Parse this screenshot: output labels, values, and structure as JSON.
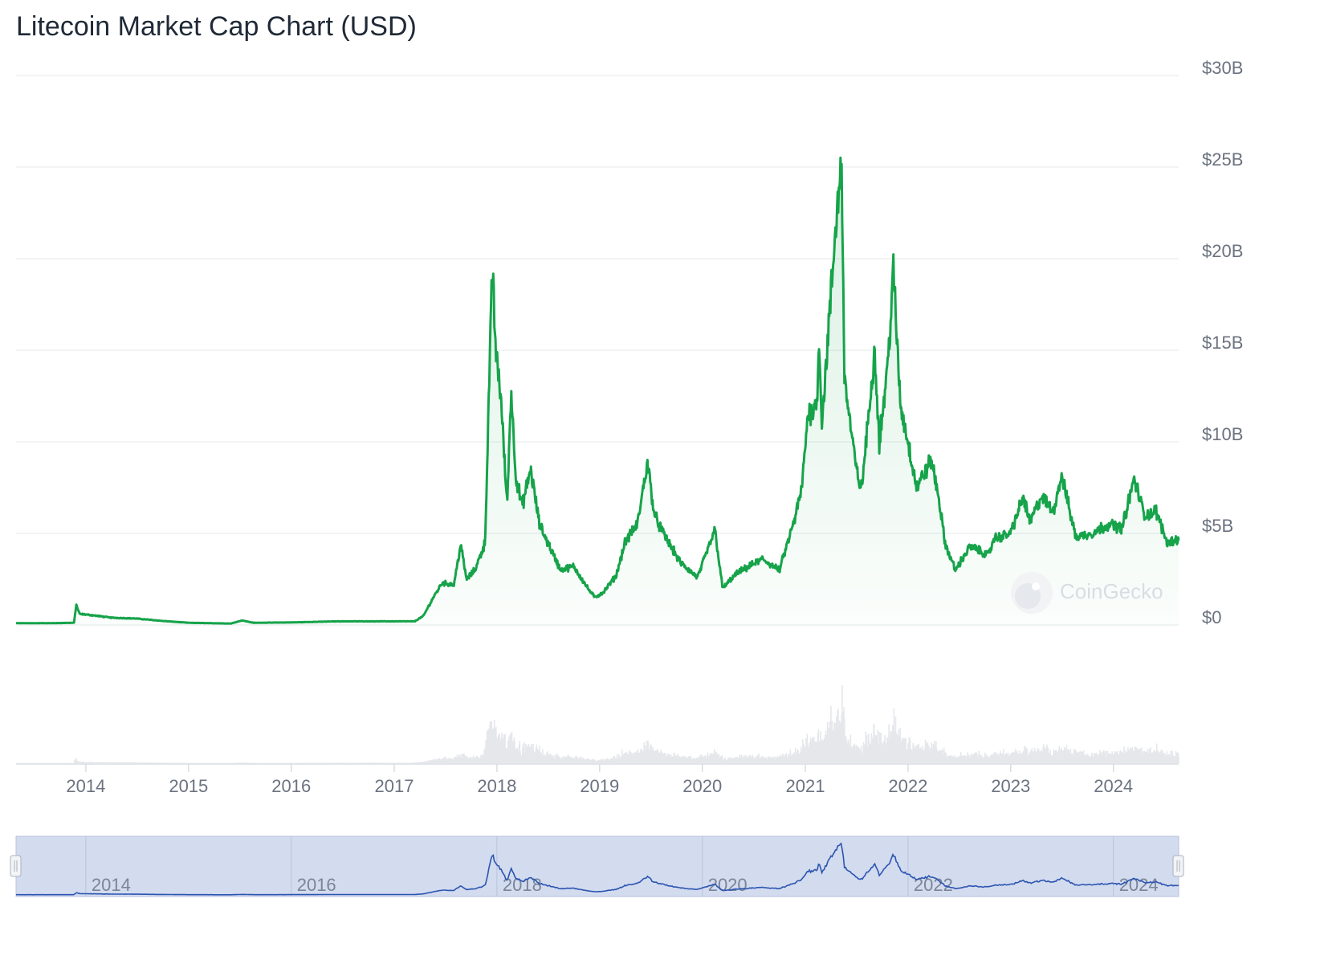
{
  "chart_data": {
    "type": "area",
    "title": "Litecoin Market Cap Chart (USD)",
    "xlabel": "",
    "ylabel": "",
    "x_axis": {
      "type": "date",
      "range": [
        "2013-04-28",
        "2024-08-20"
      ],
      "ticks": [
        "2014",
        "2015",
        "2016",
        "2017",
        "2018",
        "2019",
        "2020",
        "2021",
        "2022",
        "2023",
        "2024"
      ]
    },
    "y_axis": {
      "unit": "USD billions",
      "range": [
        0,
        30
      ],
      "ticks": [
        "$0",
        "$5B",
        "$10B",
        "$15B",
        "$20B",
        "$25B",
        "$30B"
      ]
    },
    "grid": true,
    "legend": "none",
    "watermark": "CoinGecko",
    "colors": {
      "line": "#16a34a",
      "fill": "#dcfce7",
      "grid": "#e9ecef",
      "volume": "#e5e7eb",
      "navigator_bg": "#d3dbef",
      "navigator_line": "#2b55b0"
    },
    "series": [
      {
        "name": "Market Cap",
        "points": [
          [
            "2013-04-28",
            0.1
          ],
          [
            "2013-09-01",
            0.1
          ],
          [
            "2013-11-20",
            0.12
          ],
          [
            "2013-11-28",
            1.1
          ],
          [
            "2013-12-10",
            0.6
          ],
          [
            "2014-01-15",
            0.55
          ],
          [
            "2014-04-01",
            0.4
          ],
          [
            "2014-07-01",
            0.35
          ],
          [
            "2014-10-01",
            0.22
          ],
          [
            "2015-01-01",
            0.12
          ],
          [
            "2015-06-01",
            0.08
          ],
          [
            "2015-07-10",
            0.25
          ],
          [
            "2015-08-20",
            0.12
          ],
          [
            "2016-01-01",
            0.14
          ],
          [
            "2016-06-15",
            0.2
          ],
          [
            "2016-12-31",
            0.2
          ],
          [
            "2017-03-15",
            0.2
          ],
          [
            "2017-04-15",
            0.5
          ],
          [
            "2017-05-20",
            1.5
          ],
          [
            "2017-06-20",
            2.3
          ],
          [
            "2017-08-01",
            2.2
          ],
          [
            "2017-08-25",
            4.4
          ],
          [
            "2017-09-15",
            2.5
          ],
          [
            "2017-10-15",
            3.0
          ],
          [
            "2017-11-20",
            4.5
          ],
          [
            "2017-12-12",
            17.5
          ],
          [
            "2017-12-19",
            19.5
          ],
          [
            "2017-12-26",
            15.0
          ],
          [
            "2018-01-05",
            14.0
          ],
          [
            "2018-01-15",
            12.5
          ],
          [
            "2018-02-06",
            6.5
          ],
          [
            "2018-02-20",
            12.8
          ],
          [
            "2018-03-10",
            8.0
          ],
          [
            "2018-04-01",
            6.5
          ],
          [
            "2018-05-01",
            8.5
          ],
          [
            "2018-06-01",
            5.5
          ],
          [
            "2018-07-01",
            4.5
          ],
          [
            "2018-08-15",
            3.0
          ],
          [
            "2018-10-01",
            3.2
          ],
          [
            "2018-11-20",
            2.0
          ],
          [
            "2018-12-15",
            1.5
          ],
          [
            "2019-01-15",
            1.8
          ],
          [
            "2019-03-01",
            2.7
          ],
          [
            "2019-04-01",
            4.5
          ],
          [
            "2019-05-15",
            5.5
          ],
          [
            "2019-06-20",
            8.9
          ],
          [
            "2019-07-15",
            6.0
          ],
          [
            "2019-08-15",
            5.0
          ],
          [
            "2019-09-15",
            4.2
          ],
          [
            "2019-10-15",
            3.4
          ],
          [
            "2019-12-15",
            2.6
          ],
          [
            "2020-02-15",
            5.2
          ],
          [
            "2020-03-13",
            2.0
          ],
          [
            "2020-05-01",
            2.8
          ],
          [
            "2020-08-01",
            3.6
          ],
          [
            "2020-10-01",
            3.0
          ],
          [
            "2020-11-25",
            5.8
          ],
          [
            "2020-12-20",
            7.5
          ],
          [
            "2021-01-10",
            11.5
          ],
          [
            "2021-02-10",
            12.0
          ],
          [
            "2021-02-20",
            15.5
          ],
          [
            "2021-03-01",
            11.0
          ],
          [
            "2021-04-16",
            21.0
          ],
          [
            "2021-05-10",
            25.7
          ],
          [
            "2021-05-19",
            14.0
          ],
          [
            "2021-06-01",
            12.0
          ],
          [
            "2021-07-01",
            8.5
          ],
          [
            "2021-07-20",
            7.4
          ],
          [
            "2021-09-05",
            15.0
          ],
          [
            "2021-09-21",
            10.0
          ],
          [
            "2021-10-20",
            14.0
          ],
          [
            "2021-11-10",
            19.3
          ],
          [
            "2021-12-05",
            12.0
          ],
          [
            "2022-01-01",
            10.0
          ],
          [
            "2022-02-01",
            7.5
          ],
          [
            "2022-03-25",
            9.0
          ],
          [
            "2022-04-20",
            7.0
          ],
          [
            "2022-05-12",
            4.5
          ],
          [
            "2022-06-18",
            3.0
          ],
          [
            "2022-08-10",
            4.3
          ],
          [
            "2022-10-15",
            3.8
          ],
          [
            "2022-11-01",
            4.7
          ],
          [
            "2022-12-31",
            5.0
          ],
          [
            "2023-02-15",
            7.0
          ],
          [
            "2023-03-10",
            5.6
          ],
          [
            "2023-04-20",
            7.0
          ],
          [
            "2023-06-01",
            6.2
          ],
          [
            "2023-07-01",
            8.2
          ],
          [
            "2023-08-20",
            4.8
          ],
          [
            "2023-10-15",
            5.0
          ],
          [
            "2023-12-15",
            5.5
          ],
          [
            "2024-02-01",
            5.3
          ],
          [
            "2024-03-15",
            8.0
          ],
          [
            "2024-04-20",
            6.0
          ],
          [
            "2024-06-01",
            6.2
          ],
          [
            "2024-07-10",
            4.5
          ],
          [
            "2024-08-20",
            4.7
          ]
        ]
      }
    ],
    "navigator": {
      "ticks": [
        "2014",
        "2016",
        "2018",
        "2020",
        "2022",
        "2024"
      ]
    }
  }
}
